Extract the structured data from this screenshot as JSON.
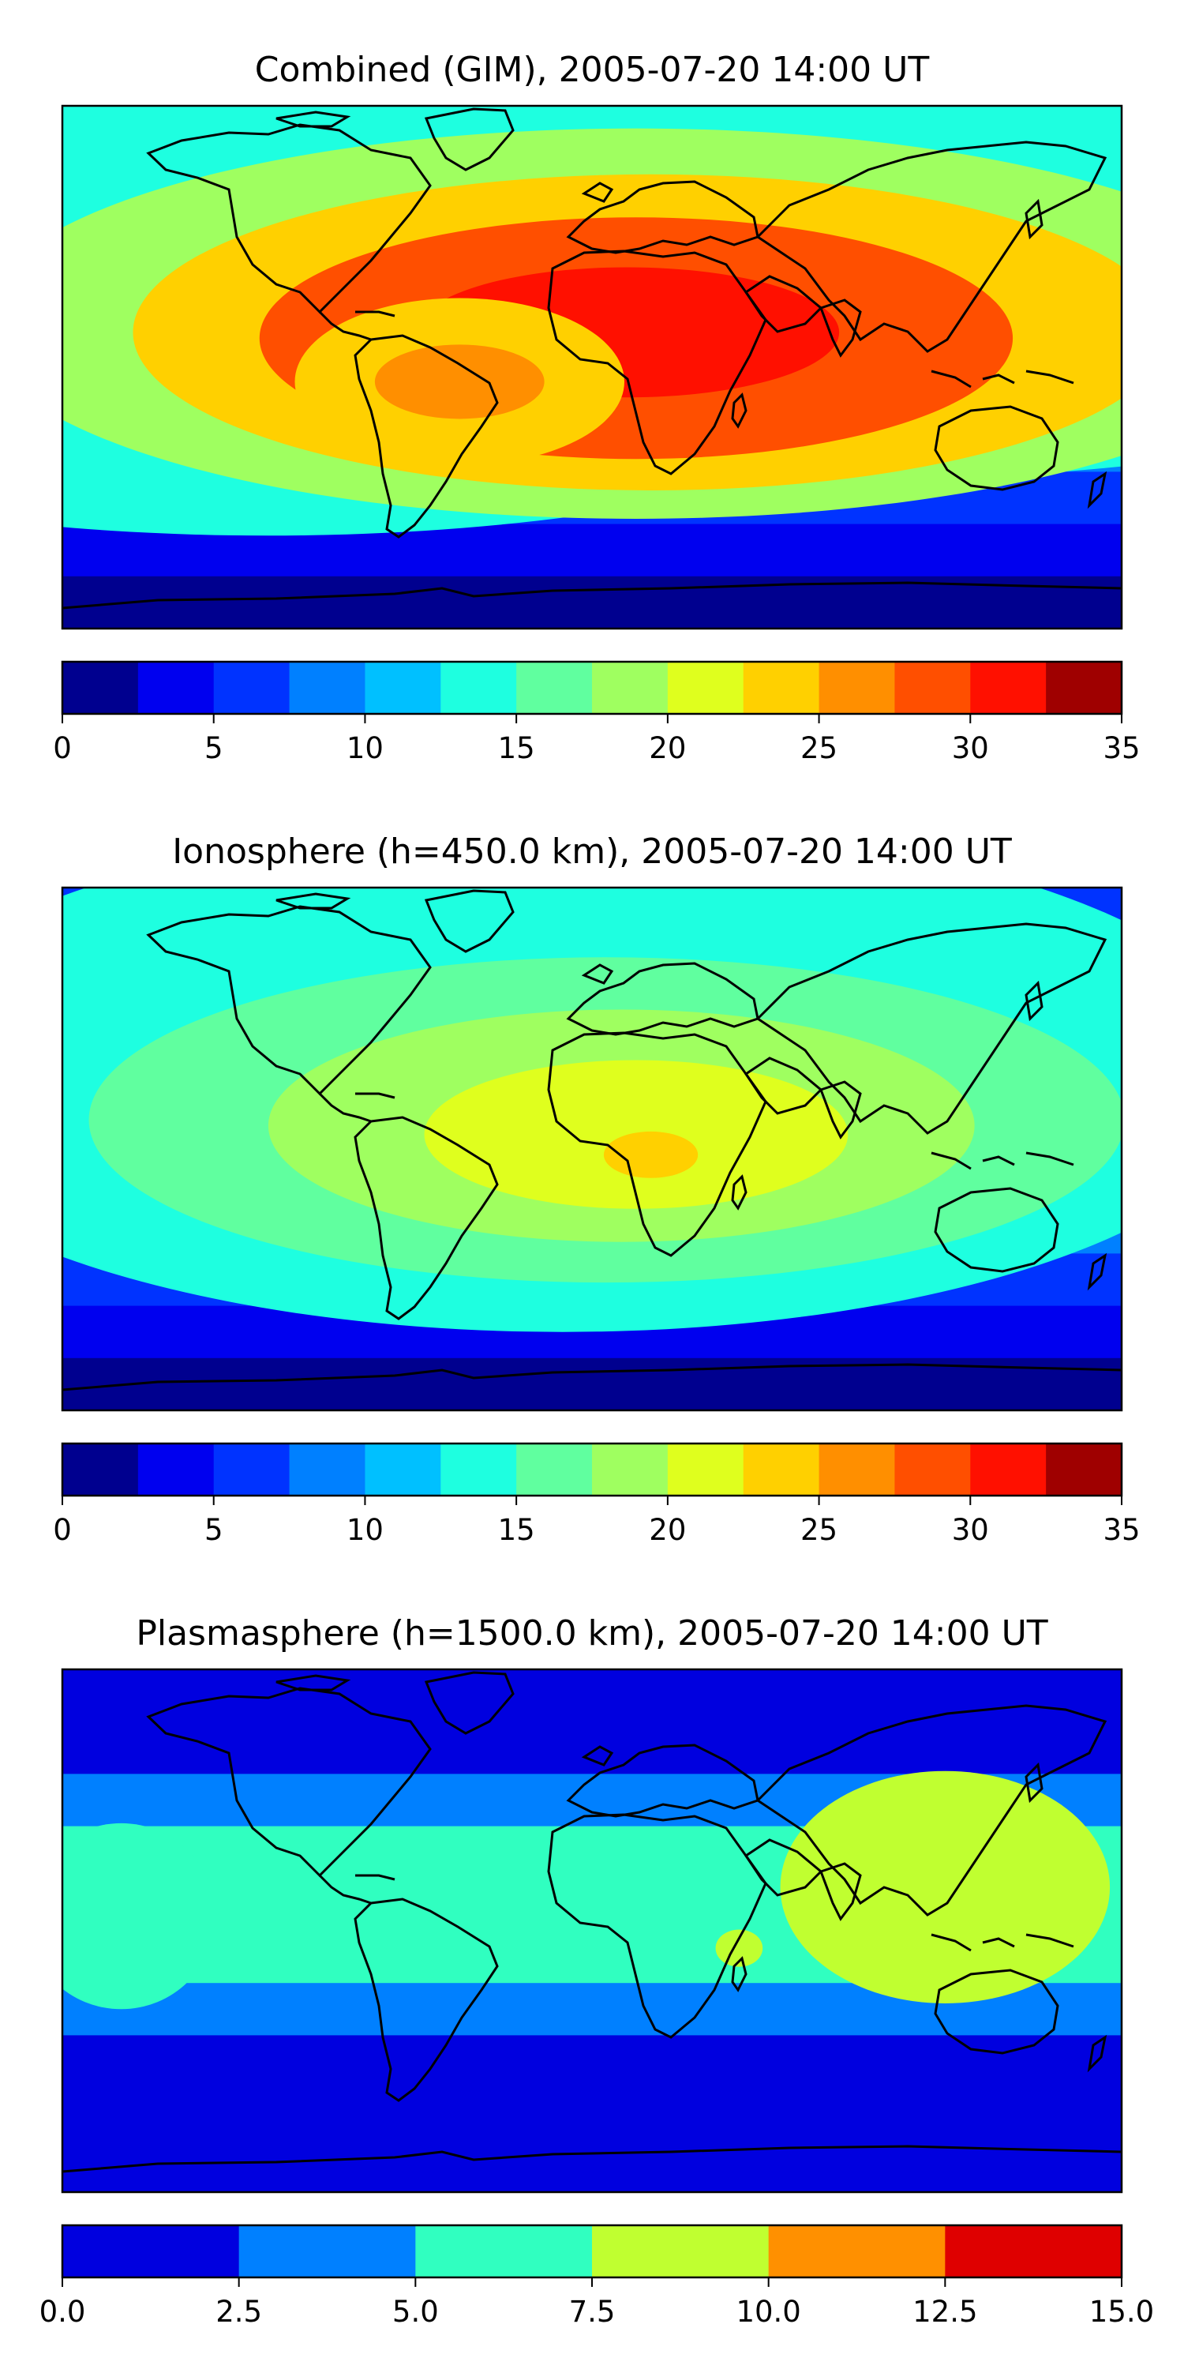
{
  "panels": [
    {
      "title": "Combined (GIM), 2005-07-20 14:00 UT",
      "colorbar": {
        "ticks": [
          "0",
          "5",
          "10",
          "15",
          "20",
          "25",
          "30",
          "35"
        ],
        "levels": [
          0,
          2.5,
          5,
          7.5,
          10,
          12.5,
          15,
          17.5,
          20,
          22.5,
          25,
          27.5,
          30,
          32.5,
          35
        ],
        "colors": [
          "#00008f",
          "#0000ef",
          "#0033ff",
          "#0080ff",
          "#00c0ff",
          "#1effe0",
          "#60ff9f",
          "#9fff60",
          "#dfff1e",
          "#ffd000",
          "#ff8f00",
          "#ff4f00",
          "#ff1000",
          "#9f0000"
        ]
      },
      "blobs": [
        {
          "lon": -110,
          "lat": 30,
          "rx": 170,
          "ry": 55,
          "level": 5
        },
        {
          "lon": 60,
          "lat": 40,
          "rx": 200,
          "ry": 50,
          "level": 5
        },
        {
          "lon": 15,
          "lat": 15,
          "rx": 140,
          "ry": 42,
          "level": 7
        },
        {
          "lon": 20,
          "lat": 12,
          "rx": 110,
          "ry": 34,
          "level": 9
        },
        {
          "lon": 15,
          "lat": 10,
          "rx": 80,
          "ry": 26,
          "level": 11
        },
        {
          "lon": 12,
          "lat": 12,
          "rx": 45,
          "ry": 14,
          "level": 12
        },
        {
          "lon": -45,
          "lat": -5,
          "rx": 35,
          "ry": 18,
          "level": 9
        },
        {
          "lon": -45,
          "lat": -5,
          "rx": 18,
          "ry": 8,
          "level": 10
        }
      ]
    },
    {
      "title": "Ionosphere  (h=450.0 km), 2005-07-20 14:00 UT",
      "colorbar": {
        "ticks": [
          "0",
          "5",
          "10",
          "15",
          "20",
          "25",
          "30",
          "35"
        ],
        "levels": [
          0,
          2.5,
          5,
          7.5,
          10,
          12.5,
          15,
          17.5,
          20,
          22.5,
          25,
          27.5,
          30,
          32.5,
          35
        ],
        "colors": [
          "#00008f",
          "#0000ef",
          "#0033ff",
          "#0080ff",
          "#00c0ff",
          "#1effe0",
          "#60ff9f",
          "#9fff60",
          "#dfff1e",
          "#ffd000",
          "#ff8f00",
          "#ff4f00",
          "#ff1000",
          "#9f0000"
        ]
      },
      "blobs": [
        {
          "lon": -10,
          "lat": 25,
          "rx": 150,
          "ry": 55,
          "level": 5
        },
        {
          "lon": 5,
          "lat": 10,
          "rx": 110,
          "ry": 35,
          "level": 6
        },
        {
          "lon": 10,
          "lat": 8,
          "rx": 75,
          "ry": 25,
          "level": 7
        },
        {
          "lon": 15,
          "lat": 5,
          "rx": 45,
          "ry": 16,
          "level": 8
        },
        {
          "lon": 20,
          "lat": -2,
          "rx": 10,
          "ry": 5,
          "level": 9
        }
      ]
    },
    {
      "title": "Plasmasphere (h=1500.0 km), 2005-07-20 14:00 UT",
      "colorbar": {
        "ticks": [
          "0.0",
          "2.5",
          "5.0",
          "7.5",
          "10.0",
          "12.5",
          "15.0"
        ],
        "levels": [
          0,
          2.5,
          5,
          7.5,
          10,
          12.5,
          15
        ],
        "colors": [
          "#0000df",
          "#0080ff",
          "#30ffc0",
          "#c0ff30",
          "#ff9000",
          "#df0000"
        ]
      },
      "blobs": [
        {
          "lon": -160,
          "lat": 5,
          "rx": 20,
          "ry": 20,
          "level": 2
        },
        {
          "lon": 120,
          "lat": 15,
          "rx": 35,
          "ry": 25,
          "level": 3
        },
        {
          "lon": 50,
          "lat": -6,
          "rx": 5,
          "ry": 4,
          "level": 3
        }
      ]
    }
  ]
}
